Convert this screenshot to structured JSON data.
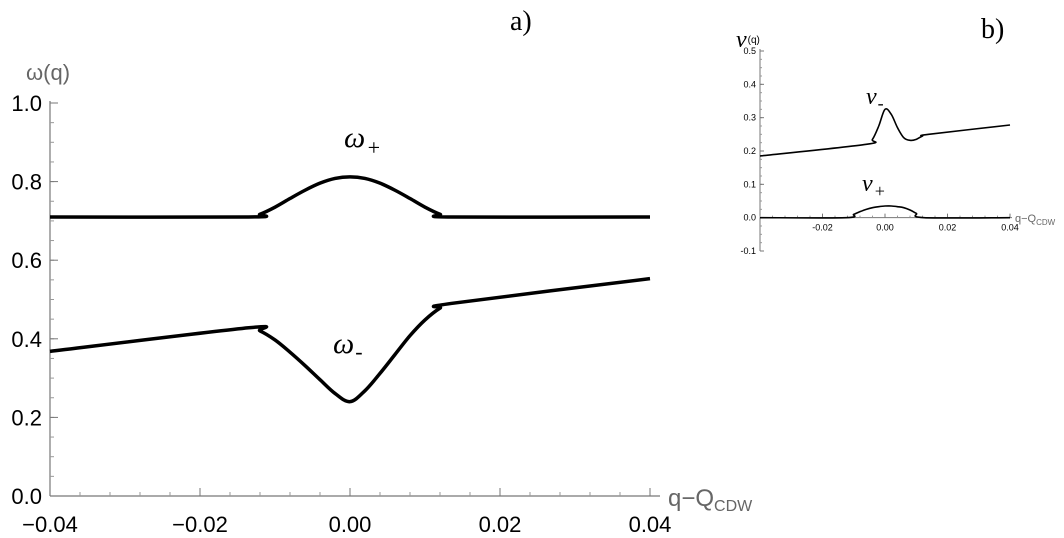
{
  "chart_data": [
    {
      "panel_label": "a)",
      "type": "line",
      "ylabel": "ω(q)",
      "xlabel_main": "q−Q",
      "xlabel_sub": "CDW",
      "xlim": [
        -0.04,
        0.04
      ],
      "ylim": [
        0,
        1.0
      ],
      "xticks": [
        -0.04,
        -0.02,
        0.0,
        0.02,
        0.04
      ],
      "xtick_labels": [
        "−0.04",
        "−0.02",
        "0.00",
        "0.02",
        "0.04"
      ],
      "yticks": [
        0,
        0.2,
        0.4,
        0.6,
        0.8,
        1.0
      ],
      "ytick_labels": [
        "0.0",
        "0.2",
        "0.4",
        "0.6",
        "0.8",
        "1.0"
      ],
      "series": [
        {
          "label_main": "ω",
          "label_sub": "+",
          "x": [
            -0.04,
            -0.0135,
            -0.012,
            -0.01,
            -0.008,
            -0.006,
            -0.004,
            -0.002,
            0.0,
            0.002,
            0.004,
            0.006,
            0.008,
            0.01,
            0.012,
            0.0135,
            0.04
          ],
          "y": [
            0.71,
            0.71,
            0.717,
            0.735,
            0.757,
            0.778,
            0.796,
            0.808,
            0.812,
            0.808,
            0.796,
            0.778,
            0.757,
            0.735,
            0.717,
            0.71,
            0.71
          ]
        },
        {
          "label_main": "ω",
          "label_sub": "-",
          "x": [
            -0.04,
            -0.0135,
            -0.012,
            -0.01,
            -0.008,
            -0.006,
            -0.004,
            -0.002,
            0.0,
            0.002,
            0.004,
            0.006,
            0.008,
            0.01,
            0.012,
            0.0135,
            0.04
          ],
          "y": [
            0.368,
            0.428,
            0.42,
            0.397,
            0.366,
            0.332,
            0.296,
            0.261,
            0.24,
            0.268,
            0.312,
            0.36,
            0.408,
            0.448,
            0.478,
            0.49,
            0.553
          ]
        }
      ]
    },
    {
      "panel_label": "b)",
      "type": "line",
      "ylabel_main": "ν",
      "ylabel_sub": "(q)",
      "xlabel_main": "q−Q",
      "xlabel_sub": "CDW",
      "xlim": [
        -0.04,
        0.04
      ],
      "ylim": [
        -0.1,
        0.5
      ],
      "xticks": [
        -0.02,
        0.0,
        0.02,
        0.04
      ],
      "xtick_labels": [
        "-0.02",
        "0.00",
        "0.02",
        "0.04"
      ],
      "yticks": [
        -0.1,
        0.0,
        0.1,
        0.2,
        0.3,
        0.4,
        0.5
      ],
      "ytick_labels": [
        "-0.1",
        "0.0",
        "0.1",
        "0.2",
        "0.3",
        "0.4",
        "0.5"
      ],
      "series": [
        {
          "label_main": "ν",
          "label_sub": "-",
          "x": [
            -0.04,
            -0.006,
            -0.004,
            -0.002,
            0.0,
            0.002,
            0.004,
            0.006,
            0.008,
            0.01,
            0.012,
            0.014,
            0.04
          ],
          "y": [
            0.185,
            0.22,
            0.235,
            0.275,
            0.325,
            0.31,
            0.27,
            0.24,
            0.232,
            0.235,
            0.245,
            0.25,
            0.278
          ]
        },
        {
          "label_main": "ν",
          "label_sub": "+",
          "x": [
            -0.04,
            -0.0125,
            -0.01,
            -0.008,
            -0.006,
            -0.004,
            -0.002,
            0.0,
            0.002,
            0.004,
            0.006,
            0.008,
            0.01,
            0.0125,
            0.04
          ],
          "y": [
            0,
            0,
            0.01,
            0.018,
            0.025,
            0.03,
            0.033,
            0.035,
            0.035,
            0.033,
            0.03,
            0.023,
            0.013,
            0,
            0
          ]
        }
      ]
    }
  ]
}
